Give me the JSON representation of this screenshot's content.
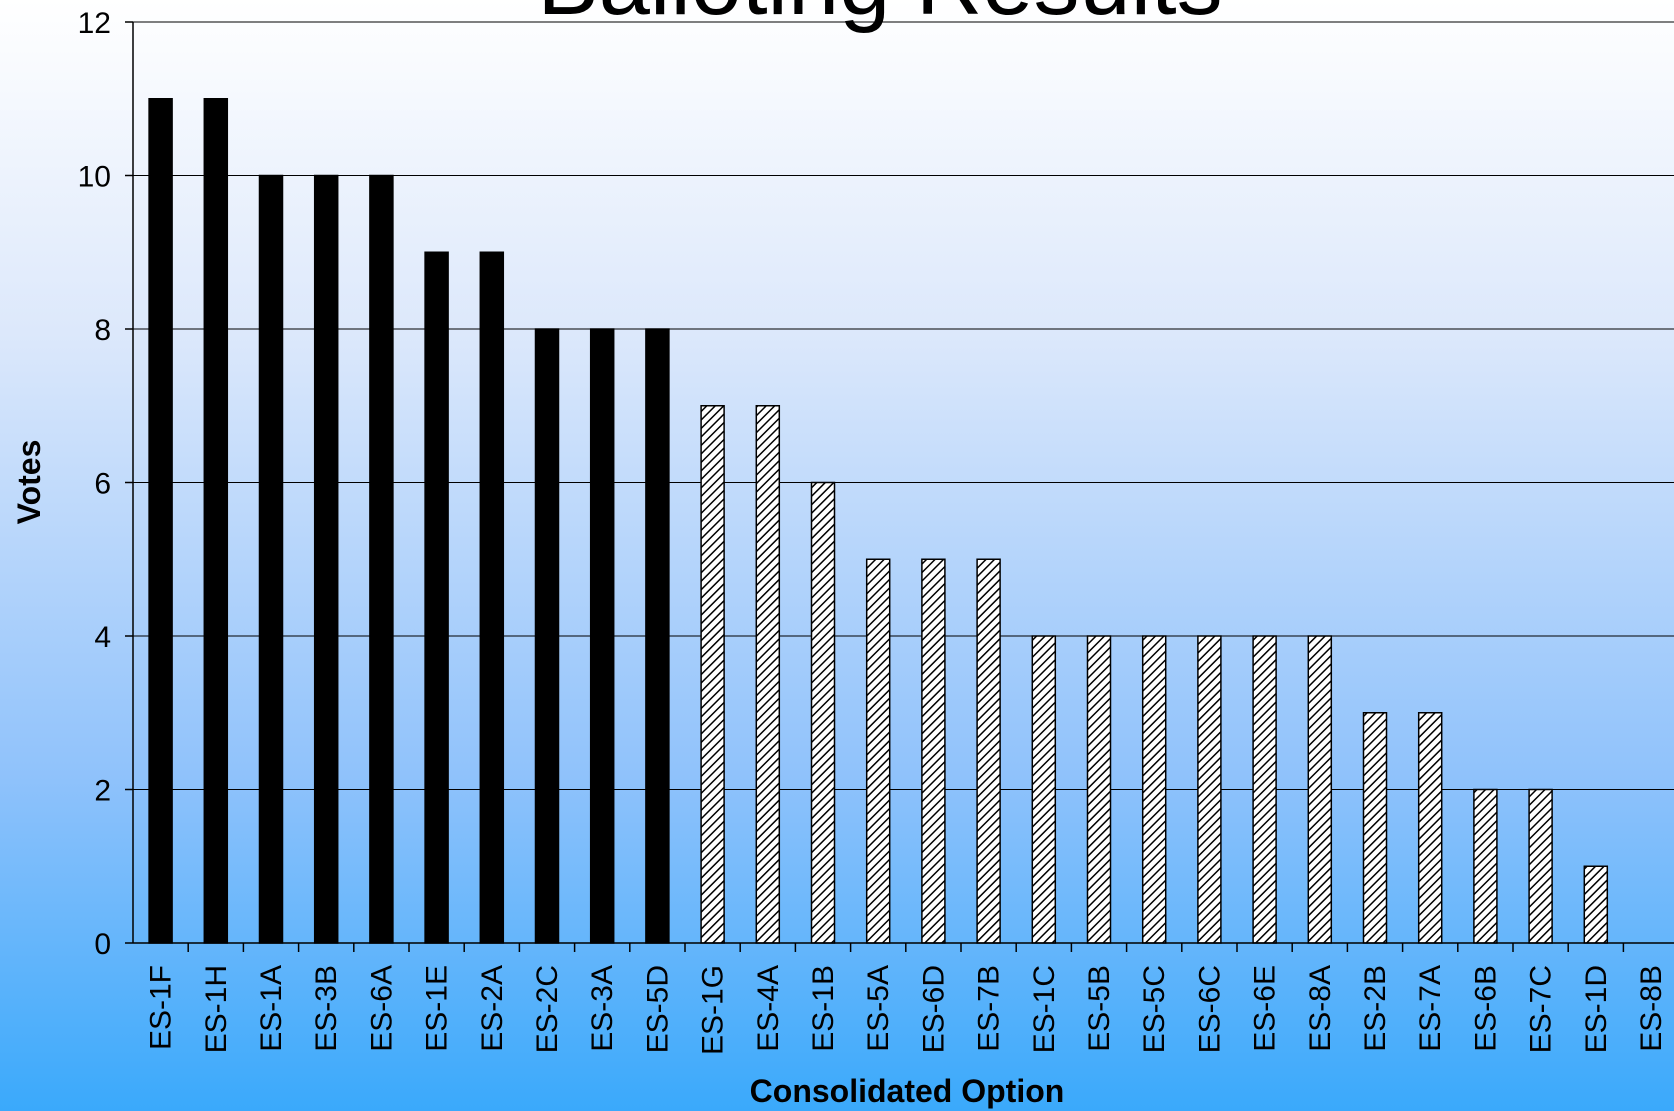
{
  "chart_data": {
    "type": "bar",
    "title": "Balloting Results",
    "xlabel": "Consolidated Option",
    "ylabel": "Votes",
    "ylim": [
      0,
      12
    ],
    "yticks": [
      0,
      2,
      4,
      6,
      8,
      10,
      12
    ],
    "grid": true,
    "categories": [
      "ES-1F",
      "ES-1H",
      "ES-1A",
      "ES-3B",
      "ES-6A",
      "ES-1E",
      "ES-2A",
      "ES-2C",
      "ES-3A",
      "ES-5D",
      "ES-1G",
      "ES-4A",
      "ES-1B",
      "ES-5A",
      "ES-6D",
      "ES-7B",
      "ES-1C",
      "ES-5B",
      "ES-5C",
      "ES-6C",
      "ES-6E",
      "ES-8A",
      "ES-2B",
      "ES-7A",
      "ES-6B",
      "ES-7C",
      "ES-1D",
      "ES-8B"
    ],
    "values": [
      11,
      11,
      10,
      10,
      10,
      9,
      9,
      8,
      8,
      8,
      7,
      7,
      6,
      5,
      5,
      5,
      4,
      4,
      4,
      4,
      4,
      4,
      3,
      3,
      2,
      2,
      1,
      0
    ],
    "bar_styles": [
      "solid",
      "solid",
      "solid",
      "solid",
      "solid",
      "solid",
      "solid",
      "solid",
      "solid",
      "solid",
      "hatched",
      "hatched",
      "hatched",
      "hatched",
      "hatched",
      "hatched",
      "hatched",
      "hatched",
      "hatched",
      "hatched",
      "hatched",
      "hatched",
      "hatched",
      "hatched",
      "hatched",
      "hatched",
      "hatched",
      "hatched"
    ],
    "colors": {
      "solid_bar": "#000000",
      "hatched_bar_fill": "#ffffff",
      "hatched_bar_lines": "#000000",
      "grid": "#000000"
    }
  }
}
